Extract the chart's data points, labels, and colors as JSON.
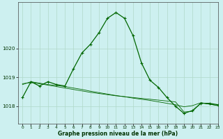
{
  "xlabel": "Graphe pression niveau de la mer (hPa)",
  "background_color": "#cdf0f0",
  "grid_color": "#b0d8c8",
  "line_color": "#006600",
  "xlim": [
    -0.5,
    23
  ],
  "ylim": [
    1017.4,
    1021.6
  ],
  "yticks": [
    1018,
    1019,
    1020
  ],
  "xticks": [
    0,
    1,
    2,
    3,
    4,
    5,
    6,
    7,
    8,
    9,
    10,
    11,
    12,
    13,
    14,
    15,
    16,
    17,
    18,
    19,
    20,
    21,
    22,
    23
  ],
  "series_main": [
    1018.3,
    1018.85,
    1018.7,
    1018.85,
    1018.75,
    1018.7,
    1019.3,
    1019.85,
    1020.15,
    1020.55,
    1021.05,
    1021.25,
    1021.05,
    1020.45,
    1019.5,
    1018.9,
    1018.65,
    1018.3,
    1018.0,
    1017.75,
    1017.85,
    1018.1,
    1018.1,
    1018.05
  ],
  "series_flat1": [
    1018.75,
    1018.85,
    1018.8,
    1018.75,
    1018.72,
    1018.68,
    1018.63,
    1018.58,
    1018.52,
    1018.47,
    1018.42,
    1018.37,
    1018.33,
    1018.28,
    1018.24,
    1018.2,
    1018.15,
    1018.1,
    1018.05,
    1017.98,
    1018.02,
    1018.12,
    1018.07,
    1018.02
  ],
  "series_flat2": [
    1018.78,
    1018.82,
    1018.78,
    1018.73,
    1018.68,
    1018.63,
    1018.58,
    1018.53,
    1018.48,
    1018.44,
    1018.4,
    1018.36,
    1018.33,
    1018.3,
    1018.27,
    1018.24,
    1018.21,
    1018.18,
    1018.15,
    1017.8,
    1017.82,
    1018.12,
    1018.07,
    1018.02
  ]
}
